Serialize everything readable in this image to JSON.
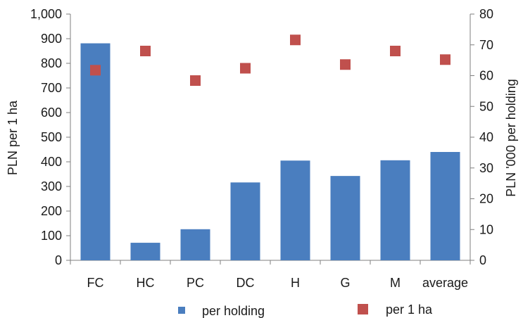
{
  "chart_data": {
    "type": "bar",
    "categories": [
      "FC",
      "HC",
      "PC",
      "DC",
      "H",
      "G",
      "M",
      "average"
    ],
    "series": [
      {
        "name": "per holding",
        "type": "bar",
        "axis": "right",
        "values": [
          70.5,
          5.7,
          10.1,
          25.3,
          32.4,
          27.4,
          32.5,
          35.2
        ],
        "color": "#4a7ebf"
      },
      {
        "name": "per 1 ha",
        "type": "scatter",
        "axis": "left",
        "values": [
          772,
          850,
          730,
          780,
          895,
          795,
          850,
          815
        ],
        "color": "#c0504d"
      }
    ],
    "left_axis": {
      "label": "PLN per 1 ha",
      "min": 0,
      "max": 1000,
      "step": 100,
      "tick_labels": [
        "0",
        "100",
        "200",
        "300",
        "400",
        "500",
        "600",
        "700",
        "800",
        "900",
        "1,000"
      ]
    },
    "right_axis": {
      "label": "PLN '000 per holding",
      "min": 0,
      "max": 80,
      "step": 10,
      "tick_labels": [
        "0",
        "10",
        "20",
        "30",
        "40",
        "50",
        "60",
        "70",
        "80"
      ]
    },
    "grid": false,
    "legend_position": "bottom"
  }
}
